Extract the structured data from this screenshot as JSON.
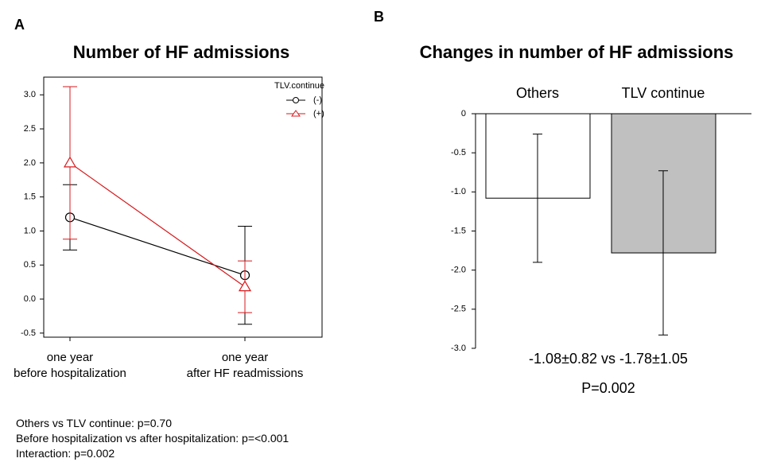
{
  "chart_data": [
    {
      "type": "line",
      "panel_label": "A",
      "title": "Number of HF admissions",
      "categories": [
        "one year\nbefore hospitalization",
        "one year\nafter HF readmissions"
      ],
      "legend_title": "TLV.continue",
      "legend": "upper right",
      "series": [
        {
          "name": "(-)",
          "color": "#000000",
          "marker": "circle",
          "values": [
            1.2,
            0.35
          ],
          "errors": [
            0.48,
            0.72
          ]
        },
        {
          "name": "(+)",
          "color": "#d7191c",
          "marker": "triangle",
          "values": [
            2.0,
            0.18
          ],
          "errors": [
            1.12,
            0.38
          ]
        }
      ],
      "ylim": [
        -0.56,
        3.26
      ],
      "yticks": [
        -0.5,
        {
          "value": 0,
          "label": "0.0"
        },
        0.5,
        {
          "value": 1,
          "label": "1.0"
        },
        1.5,
        {
          "value": 2,
          "label": "2.0"
        },
        2.5,
        {
          "value": 3,
          "label": "3.0"
        }
      ]
    },
    {
      "type": "bar",
      "panel_label": "B",
      "title": "Changes in number of HF admissions",
      "categories": [
        "Others",
        "TLV continue"
      ],
      "values": [
        -1.08,
        -1.78
      ],
      "errors": [
        0.82,
        1.05
      ],
      "colors": [
        "#ffffff",
        "#c0c0c0"
      ],
      "ylim": [
        -3,
        0
      ],
      "yticks": [
        0,
        -0.5,
        {
          "value": -1,
          "label": "-1.0"
        },
        -1.5,
        {
          "value": -2,
          "label": "-2.0"
        },
        -2.5,
        {
          "value": -3,
          "label": "-3.0"
        }
      ],
      "annotations": [
        "-1.08±0.82 vs -1.78±1.05",
        "P=0.002"
      ]
    }
  ],
  "notes": [
    "Others vs TLV continue: p=0.70",
    "Before hospitalization vs after hospitalization: p=<0.001",
    "Interaction: p=0.002"
  ]
}
